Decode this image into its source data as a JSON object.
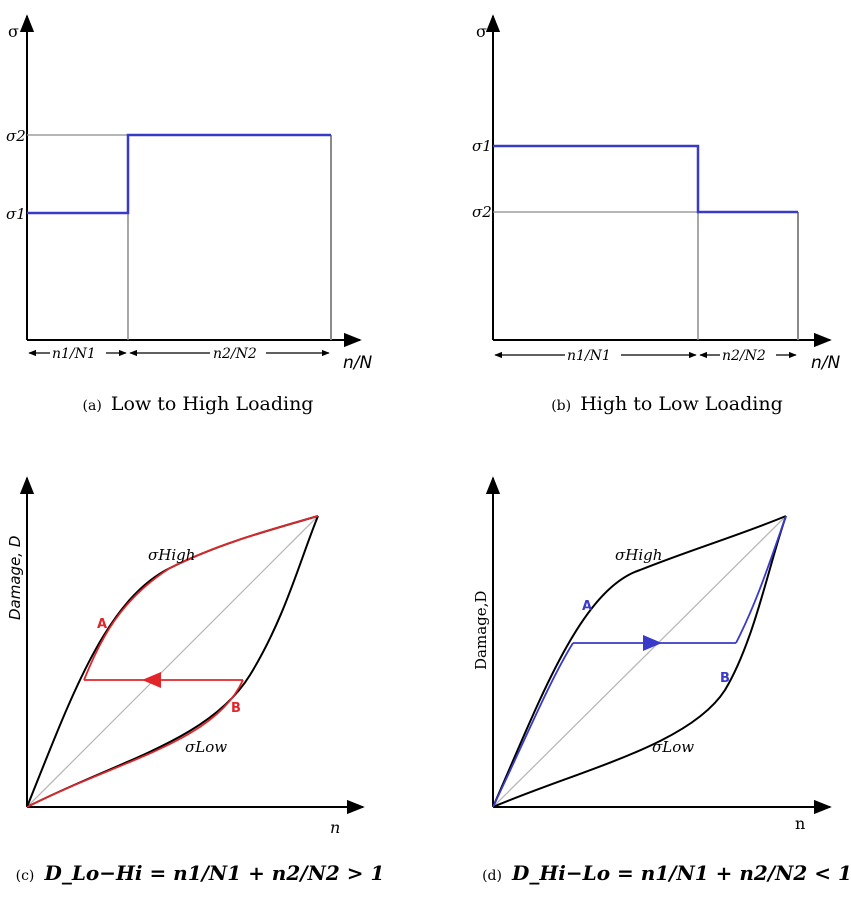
{
  "panel_a": {
    "y_axis_label": "σ",
    "x_axis_label": "n/N",
    "level_high_label": "σ2",
    "level_low_label": "σ1",
    "seg1_label": "n1/N1",
    "seg2_label": "n2/N2",
    "caption_prefix": "(a)",
    "caption_text": "Low to High Loading",
    "colors": {
      "curve": "#3a3ac8",
      "axis": "#000000",
      "guide": "#8a8a8a"
    }
  },
  "panel_b": {
    "y_axis_label": "σ",
    "x_axis_label": "n/N",
    "level_high_label": "σ1",
    "level_low_label": "σ2",
    "seg1_label": "n1/N1",
    "seg2_label": "n2/N2",
    "caption_prefix": "(b)",
    "caption_text": "High to Low Loading",
    "colors": {
      "curve": "#3a3ac8",
      "axis": "#000000",
      "guide": "#8a8a8a"
    }
  },
  "panel_c": {
    "y_axis_label": "Damage, D",
    "x_axis_label": "n",
    "curve_high_label": "σHigh",
    "curve_low_label": "σLow",
    "point_a": "A",
    "point_b": "B",
    "caption_prefix": "(c)",
    "caption_formula": "D_Lo−Hi = n1/N1 + n2/N2 > 1",
    "colors": {
      "path": "#e0262a",
      "curve": "#000000",
      "diagonal": "#b9b9b9"
    }
  },
  "panel_d": {
    "y_axis_label": "Damage,D",
    "x_axis_label": "n",
    "curve_high_label": "σHigh",
    "curve_low_label": "σLow",
    "point_a": "A",
    "point_b": "B",
    "caption_prefix": "(d)",
    "caption_formula": "D_Hi−Lo = n1/N1 + n2/N2 < 1",
    "colors": {
      "path": "#3a3ac8",
      "curve": "#000000",
      "diagonal": "#b9b9b9"
    }
  }
}
